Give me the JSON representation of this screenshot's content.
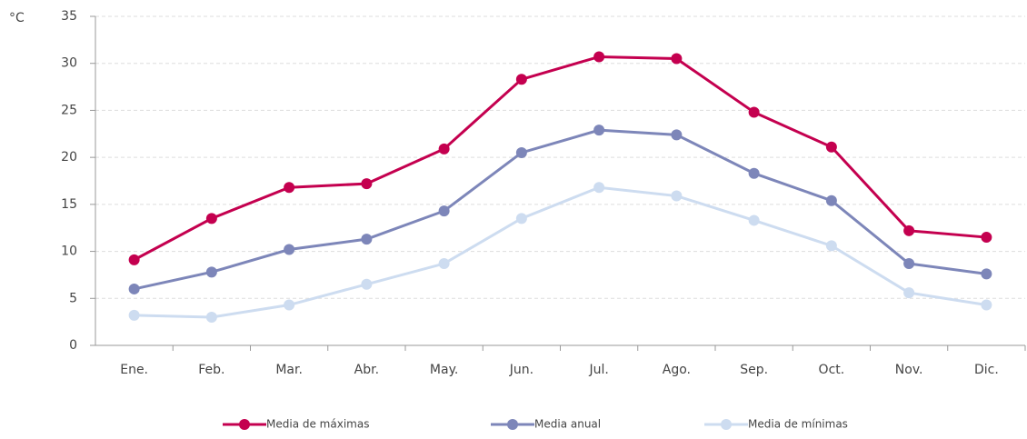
{
  "chart_data": {
    "type": "line",
    "unit_label": "°C",
    "categories": [
      "Ene.",
      "Feb.",
      "Mar.",
      "Abr.",
      "May.",
      "Jun.",
      "Jul.",
      "Ago.",
      "Sep.",
      "Oct.",
      "Nov.",
      "Dic."
    ],
    "series": [
      {
        "name": "Media de máximas",
        "color": "#c4004f",
        "values": [
          9.1,
          13.5,
          16.8,
          17.2,
          20.9,
          28.3,
          30.7,
          30.5,
          24.8,
          21.1,
          12.2,
          11.5
        ]
      },
      {
        "name": "Media anual",
        "color": "#7d86b9",
        "values": [
          6.0,
          7.8,
          10.2,
          11.3,
          14.3,
          20.5,
          22.9,
          22.4,
          18.3,
          15.4,
          8.7,
          7.6
        ]
      },
      {
        "name": "Media de mínimas",
        "color": "#cddcf0",
        "values": [
          3.2,
          3.0,
          4.3,
          6.5,
          8.7,
          13.5,
          16.8,
          15.9,
          13.3,
          10.6,
          5.6,
          4.3
        ]
      }
    ],
    "ylim": [
      0,
      35
    ],
    "yticks": [
      0,
      5,
      10,
      15,
      20,
      25,
      30,
      35
    ],
    "grid": true,
    "legend": "bottom"
  }
}
